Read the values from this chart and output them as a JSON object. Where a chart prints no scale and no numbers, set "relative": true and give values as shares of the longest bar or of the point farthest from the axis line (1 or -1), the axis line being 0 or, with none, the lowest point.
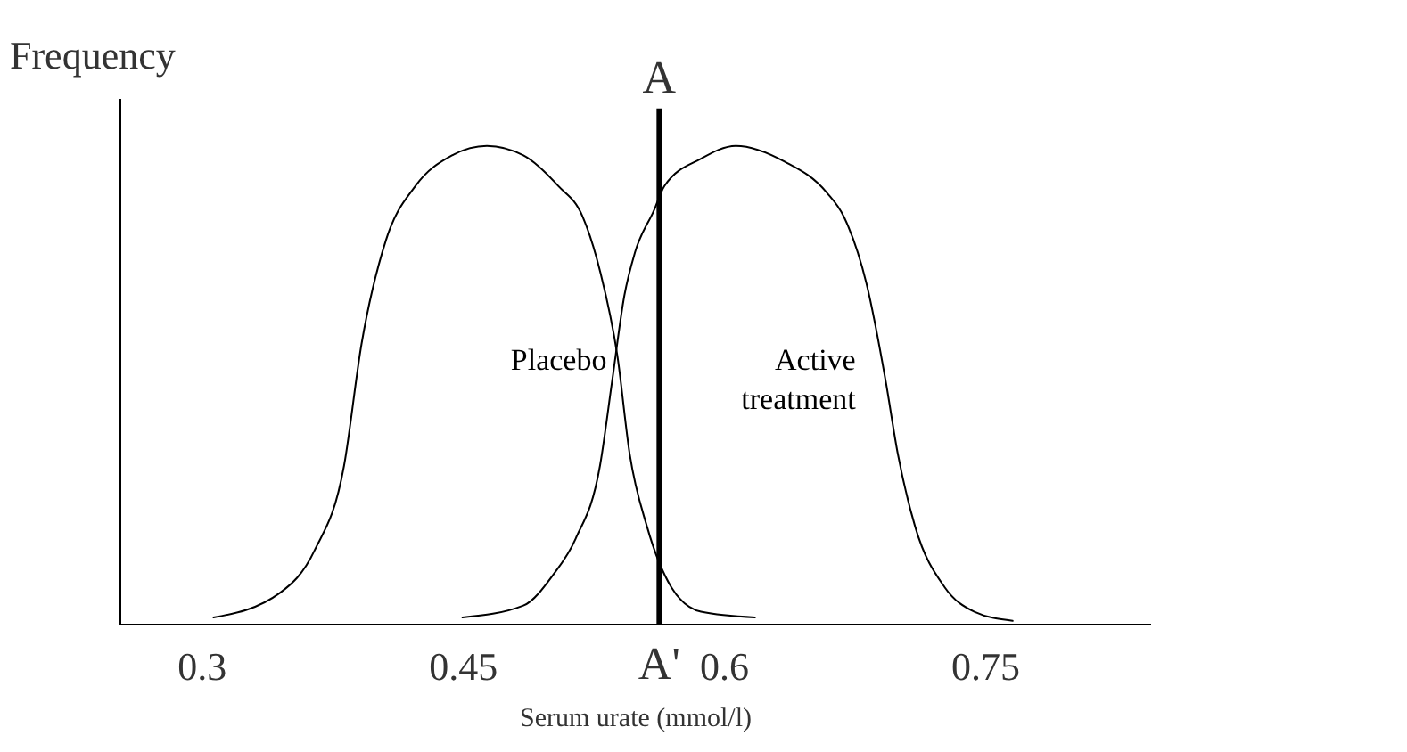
{
  "chart_data": {
    "type": "line",
    "relative": true,
    "ylabel": "Frequency",
    "xlabel": "Serum urate (mmol/l)",
    "xlim": [
      0.253,
      0.845
    ],
    "xticks": [
      0.3,
      0.45,
      0.6,
      0.75
    ],
    "grid": false,
    "legend": false,
    "tick_labels": "x",
    "marker": "none",
    "line_style": "solid",
    "series": [
      {
        "name": "Placebo",
        "color": "#000000",
        "x": [
          0.307,
          0.345,
          0.365,
          0.382,
          0.392,
          0.406,
          0.423,
          0.444,
          0.464,
          0.485,
          0.505,
          0.519,
          0.529,
          0.539,
          0.546,
          0.556,
          0.57,
          0.587,
          0.618
        ],
        "values": [
          0.013,
          0.064,
          0.153,
          0.331,
          0.585,
          0.802,
          0.916,
          0.98,
          1.0,
          0.98,
          0.916,
          0.852,
          0.738,
          0.56,
          0.356,
          0.203,
          0.076,
          0.025,
          0.013
        ]
      },
      {
        "name": "Active treatment",
        "color": "#000000",
        "x": [
          0.45,
          0.485,
          0.502,
          0.515,
          0.529,
          0.536,
          0.543,
          0.549,
          0.56,
          0.566,
          0.587,
          0.607,
          0.635,
          0.659,
          0.669,
          0.682,
          0.693,
          0.7,
          0.71,
          0.727,
          0.744,
          0.766
        ],
        "values": [
          0.013,
          0.038,
          0.102,
          0.178,
          0.331,
          0.509,
          0.687,
          0.776,
          0.865,
          0.916,
          0.973,
          1.0,
          0.967,
          0.903,
          0.852,
          0.712,
          0.509,
          0.356,
          0.203,
          0.076,
          0.025,
          0.006
        ]
      }
    ],
    "ref_lines": [
      {
        "axis": "x",
        "value": 0.563,
        "label": "A",
        "color": "#000000",
        "line_style": "solid"
      }
    ],
    "annotations": [
      {
        "text": "A'",
        "x": 0.563,
        "y": 0
      }
    ]
  }
}
